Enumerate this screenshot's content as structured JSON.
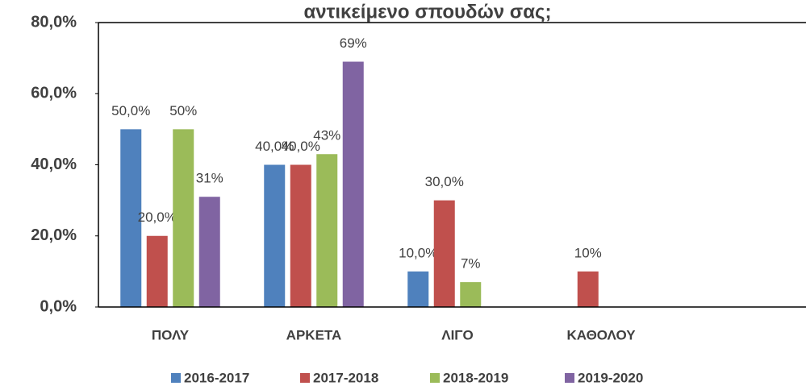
{
  "chart_data": {
    "type": "bar",
    "title": "αντικείμενο σπουδών σας;",
    "categories": [
      "ΠΟΛΥ",
      "ΑΡΚΕΤΑ",
      "ΛΙΓΟ",
      "ΚΑΘΟΛΟΥ"
    ],
    "series": [
      {
        "name": "2016-2017",
        "color": "#4f81bd",
        "values": [
          50,
          40,
          10,
          null
        ],
        "value_labels": [
          "50,0%",
          "40,0%",
          "10,0%",
          null
        ]
      },
      {
        "name": "2017-2018",
        "color": "#c0504d",
        "values": [
          20,
          40,
          30,
          10
        ],
        "value_labels": [
          "20,0%",
          "40,0%",
          "30,0%",
          "10%"
        ]
      },
      {
        "name": "2018-2019",
        "color": "#9bbb59",
        "values": [
          50,
          43,
          7,
          null
        ],
        "value_labels": [
          "50%",
          "43%",
          "7%",
          null
        ]
      },
      {
        "name": "2019-2020",
        "color": "#8064a2",
        "values": [
          31,
          69,
          null,
          null
        ],
        "value_labels": [
          "31%",
          "69%",
          null,
          null
        ]
      }
    ],
    "ylim": [
      0,
      80
    ],
    "yticks": [
      {
        "value": 0,
        "label": "0,0%"
      },
      {
        "value": 20,
        "label": "20,0%"
      },
      {
        "value": 40,
        "label": "40,0%"
      },
      {
        "value": 60,
        "label": "60,0%"
      },
      {
        "value": 80,
        "label": "80,0%"
      }
    ],
    "legend": "bottom"
  }
}
